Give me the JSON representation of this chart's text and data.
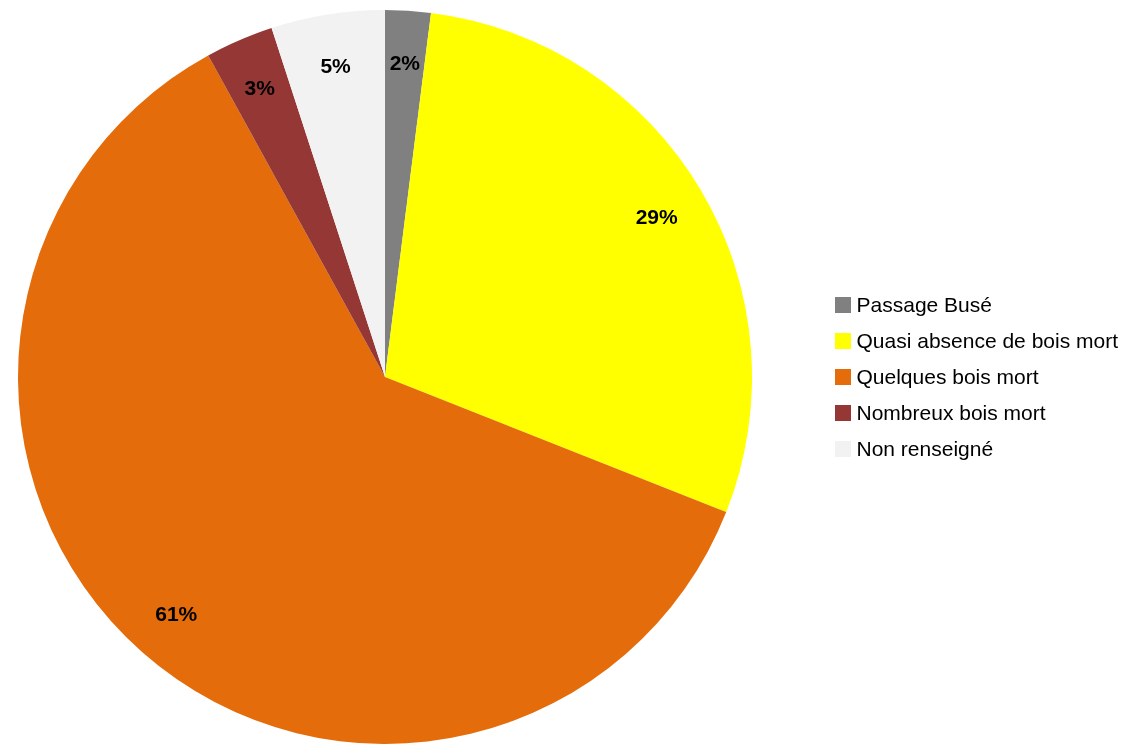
{
  "chart_data": {
    "type": "pie",
    "categories": [
      "Passage Busé",
      "Quasi absence de bois mort",
      "Quelques bois mort",
      "Nombreux bois mort",
      "Non renseigné"
    ],
    "values": [
      2,
      29,
      61,
      3,
      5
    ],
    "value_labels": [
      "2%",
      "29%",
      "61%",
      "3%",
      "5%"
    ],
    "colors": [
      "#808080",
      "#ffff00",
      "#e46c0a",
      "#953735",
      "#f2f2f2"
    ],
    "legend": "right"
  }
}
